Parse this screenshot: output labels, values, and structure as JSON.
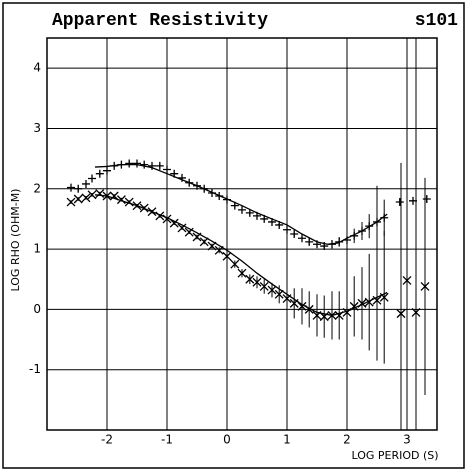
{
  "chart_data": {
    "type": "scatter",
    "title": "Apparent Resistivity",
    "subtitle": "s101",
    "x_label": "LOG PERIOD (S)",
    "y_label": "LOG RHO (OHM-M)",
    "xlim": [
      -3,
      3.5
    ],
    "ylim": [
      -2,
      4.5
    ],
    "xticks": [
      -2,
      -1,
      0,
      1,
      2,
      3
    ],
    "yticks": [
      -1,
      0,
      1,
      2,
      3,
      4
    ],
    "grid": true,
    "series": [
      {
        "marker": "plus",
        "color": "#000000",
        "x": [
          -2.6,
          -2.48,
          -2.35,
          -2.25,
          -2.12,
          -2.0,
          -1.88,
          -1.76,
          -1.63,
          -1.5,
          -1.38,
          -1.25,
          -1.12,
          -1.0,
          -0.88,
          -0.75,
          -0.63,
          -0.5,
          -0.38,
          -0.25,
          -0.13,
          0.0,
          0.13,
          0.25,
          0.38,
          0.5,
          0.62,
          0.75,
          0.87,
          1.0,
          1.12,
          1.25,
          1.37,
          1.5,
          1.62,
          1.75,
          1.87,
          2.0,
          2.12,
          2.25,
          2.37,
          2.5,
          2.62,
          2.88,
          3.1,
          3.33
        ],
        "values": [
          2.02,
          2.0,
          2.08,
          2.17,
          2.25,
          2.3,
          2.38,
          2.4,
          2.42,
          2.42,
          2.4,
          2.38,
          2.38,
          2.32,
          2.25,
          2.18,
          2.1,
          2.05,
          2.0,
          1.93,
          1.88,
          1.82,
          1.72,
          1.65,
          1.6,
          1.55,
          1.5,
          1.45,
          1.4,
          1.32,
          1.25,
          1.18,
          1.12,
          1.08,
          1.05,
          1.08,
          1.12,
          1.15,
          1.22,
          1.3,
          1.38,
          1.45,
          1.52,
          1.78,
          1.8,
          1.83
        ],
        "errors": [
          0.03,
          0.03,
          0.03,
          0.03,
          0.03,
          0.03,
          0.03,
          0.03,
          0.03,
          0.03,
          0.03,
          0.03,
          0.03,
          0.03,
          0.03,
          0.03,
          0.03,
          0.03,
          0.03,
          0.03,
          0.03,
          0.03,
          0.03,
          0.03,
          0.03,
          0.03,
          0.03,
          0.03,
          0.03,
          0.04,
          0.04,
          0.05,
          0.05,
          0.06,
          0.06,
          0.07,
          0.08,
          0.1,
          0.12,
          0.15,
          0.2,
          0.6,
          0.3,
          0.05,
          0.05,
          0.05
        ]
      },
      {
        "marker": "cross",
        "color": "#000000",
        "x": [
          -2.6,
          -2.48,
          -2.35,
          -2.25,
          -2.12,
          -2.0,
          -1.88,
          -1.76,
          -1.63,
          -1.5,
          -1.38,
          -1.25,
          -1.12,
          -1.0,
          -0.88,
          -0.75,
          -0.63,
          -0.5,
          -0.38,
          -0.25,
          -0.13,
          0.0,
          0.13,
          0.25,
          0.38,
          0.5,
          0.62,
          0.75,
          0.87,
          1.0,
          1.12,
          1.25,
          1.37,
          1.5,
          1.62,
          1.75,
          1.87,
          2.0,
          2.12,
          2.25,
          2.37,
          2.5,
          2.62,
          2.9,
          3.0,
          3.15,
          3.3
        ],
        "values": [
          1.78,
          1.83,
          1.85,
          1.9,
          1.92,
          1.88,
          1.88,
          1.82,
          1.78,
          1.72,
          1.68,
          1.62,
          1.55,
          1.5,
          1.43,
          1.35,
          1.28,
          1.2,
          1.12,
          1.05,
          0.98,
          0.88,
          0.75,
          0.6,
          0.5,
          0.45,
          0.38,
          0.32,
          0.25,
          0.18,
          0.1,
          0.05,
          0.0,
          -0.1,
          -0.12,
          -0.1,
          -0.1,
          -0.05,
          0.05,
          0.1,
          0.12,
          0.15,
          0.2,
          -0.07,
          0.48,
          -0.05,
          0.38
        ],
        "errors": [
          0.03,
          0.03,
          0.03,
          0.03,
          0.03,
          0.03,
          0.03,
          0.03,
          0.03,
          0.03,
          0.03,
          0.03,
          0.03,
          0.03,
          0.03,
          0.03,
          0.03,
          0.04,
          0.04,
          0.04,
          0.05,
          0.05,
          0.06,
          0.07,
          0.08,
          0.1,
          0.12,
          0.12,
          0.15,
          0.2,
          0.25,
          0.3,
          0.3,
          0.35,
          0.35,
          0.4,
          0.4,
          0.45,
          0.5,
          0.6,
          0.8,
          1.0,
          1.1,
          2.5,
          6.0,
          6.0,
          1.8
        ]
      },
      {
        "style": "line",
        "color": "#000000",
        "x": [
          -2.2,
          -2.0,
          -1.75,
          -1.5,
          -1.25,
          -1.0,
          -0.75,
          -0.5,
          -0.25,
          0.0,
          0.25,
          0.5,
          0.75,
          1.0,
          1.25,
          1.5,
          1.67,
          1.85,
          2.0,
          2.25,
          2.5,
          2.67
        ],
        "values": [
          2.36,
          2.37,
          2.4,
          2.4,
          2.35,
          2.25,
          2.15,
          2.05,
          1.94,
          1.83,
          1.72,
          1.6,
          1.5,
          1.4,
          1.25,
          1.12,
          1.08,
          1.1,
          1.18,
          1.3,
          1.45,
          1.58
        ]
      },
      {
        "style": "line",
        "color": "#000000",
        "x": [
          -2.2,
          -2.0,
          -1.75,
          -1.5,
          -1.25,
          -1.0,
          -0.75,
          -0.5,
          -0.25,
          0.0,
          0.25,
          0.5,
          0.75,
          1.0,
          1.25,
          1.5,
          1.75,
          2.0,
          2.25,
          2.5,
          2.67
        ],
        "values": [
          1.9,
          1.88,
          1.8,
          1.72,
          1.62,
          1.52,
          1.4,
          1.27,
          1.13,
          0.98,
          0.8,
          0.6,
          0.42,
          0.25,
          0.08,
          -0.05,
          -0.1,
          -0.03,
          0.08,
          0.2,
          0.28
        ]
      }
    ]
  }
}
